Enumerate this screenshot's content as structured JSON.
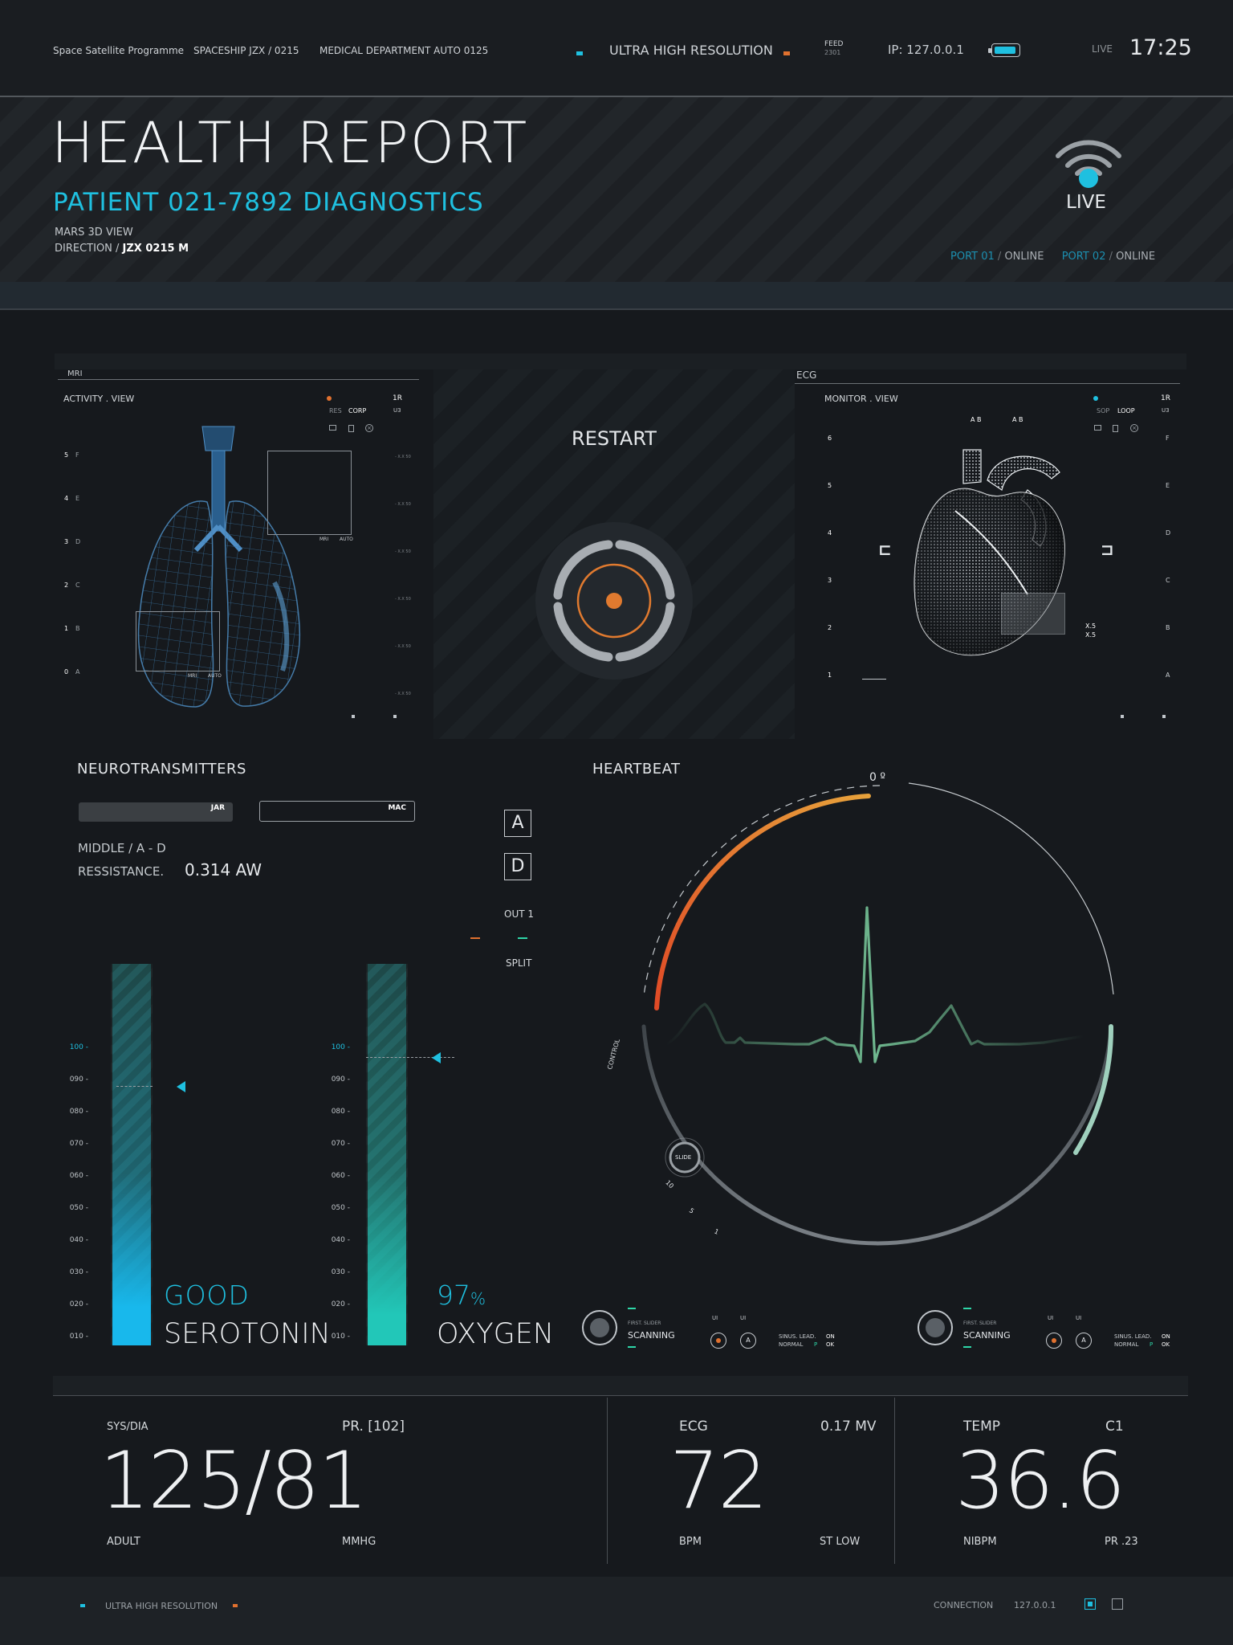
{
  "topbar": {
    "programme": "Space Satellite Programme",
    "spaceship": "SPACESHIP  JZX / 0215",
    "department": "MEDICAL DEPARTMENT AUTO 0125",
    "resolution": "ULTRA HIGH RESOLUTION",
    "feed_label": "FEED",
    "feed_value": "2301",
    "ip": "IP: 127.0.0.1",
    "live": "LIVE",
    "time": "17:25"
  },
  "hero": {
    "title": "HEALTH REPORT",
    "subtitle": "PATIENT 021-7892 DIAGNOSTICS",
    "view": "MARS 3D VIEW",
    "direction_label": "DIRECTION / ",
    "direction_value": "JZX 0215  M",
    "live_label": "LIVE",
    "port1": "PORT 01",
    "port1_status": "ONLINE",
    "port2": "PORT 02",
    "port2_status": "ONLINE"
  },
  "mri": {
    "tab": "MRI",
    "view": "ACTIVITY . VIEW",
    "res_label": "RES",
    "res_value": "CORP",
    "id_top": "1R",
    "id_sub": "U3",
    "y_numbers": [
      "5",
      "4",
      "3",
      "2",
      "1",
      "0"
    ],
    "y_letters": [
      "F",
      "E",
      "D",
      "C",
      "B",
      "A"
    ],
    "right_ticks": [
      "X.X 50",
      "X.X 50",
      "X.X 50",
      "X.X 50",
      "X.X 50",
      "X.X 50"
    ],
    "box_labels": [
      "MRI",
      "AUTO"
    ]
  },
  "restart": {
    "label": "RESTART"
  },
  "ecg_panel": {
    "tab": "ECG",
    "view": "MONITOR . VIEW",
    "sop_label": "SOP",
    "sop_value": "LOOP",
    "id_top": "1R",
    "id_sub": "U3",
    "top_labels": [
      "A  B",
      "A  B"
    ],
    "y_numbers": [
      "6",
      "5",
      "4",
      "3",
      "2",
      "1"
    ],
    "y_letters": [
      "F",
      "E",
      "D",
      "C",
      "B",
      "A"
    ],
    "box_value": "X.5",
    "box_value2": "X.5"
  },
  "neuro": {
    "title": "NEUROTRANSMITTERS",
    "toggle_left": "JAR",
    "toggle_right": "MAC",
    "middle": "MIDDLE / A - D",
    "resistance_label": "RESSISTANCE.",
    "resistance_value": "0.314 AW",
    "btn_a": "A",
    "btn_d": "D",
    "out": "OUT 1",
    "split": "SPLIT",
    "scale": [
      "100",
      "090",
      "080",
      "070",
      "060",
      "050",
      "040",
      "030",
      "020",
      "010"
    ],
    "serotonin_status": "GOOD",
    "serotonin_label": "SEROTONIN",
    "serotonin_level": 0.88,
    "oxygen_value": "97",
    "oxygen_unit": "%",
    "oxygen_label": "OXYGEN",
    "oxygen_level": 0.97
  },
  "heartbeat": {
    "title": "HEARTBEAT",
    "angle": "0 º",
    "control": "CONTROL",
    "slide": "SLIDE",
    "dial_ticks": [
      "10",
      "5",
      "1"
    ],
    "controls": [
      {
        "first": "FIRST. SLIDER",
        "scanning": "SCANNING",
        "ui1": "UI",
        "ui2": "UI",
        "btn": "A",
        "sinus": "SINUS. LEAD.",
        "normal": "NORMAL",
        "p": "P",
        "on": "ON",
        "ok": "OK"
      },
      {
        "first": "FIRST. SLIDER",
        "scanning": "SCANNING",
        "ui1": "UI",
        "ui2": "UI",
        "btn": "A",
        "sinus": "SINUS. LEAD.",
        "normal": "NORMAL",
        "p": "P",
        "on": "ON",
        "ok": "OK"
      }
    ]
  },
  "stats": {
    "bp_label": "SYS/DIA",
    "bp_pr": "PR. [102]",
    "bp_value": "125/81",
    "bp_sub_left": "ADULT",
    "bp_sub_right": "MMHG",
    "ecg_label": "ECG",
    "ecg_mv": "0.17 MV",
    "ecg_value": "72",
    "ecg_sub_left": "BPM",
    "ecg_sub_right": "ST LOW",
    "temp_label": "TEMP",
    "temp_c": "C1",
    "temp_value": "36.6",
    "temp_sub_left": "NIBPM",
    "temp_sub_right": "PR .23"
  },
  "footer": {
    "resolution": "ULTRA HIGH RESOLUTION",
    "connection": "CONNECTION",
    "ip": "127.0.0.1"
  },
  "colors": {
    "accent": "#1fc0e0",
    "warning": "#e0712f",
    "ecg_line": "#5fa27d",
    "background": "#16191d"
  }
}
